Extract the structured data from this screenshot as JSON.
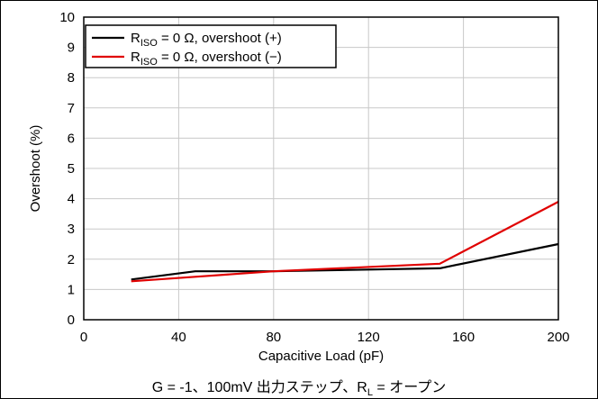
{
  "chart_data": {
    "type": "line",
    "xlabel": "Capacitive Load (pF)",
    "ylabel": "Overshoot (%)",
    "xlim": [
      0,
      200
    ],
    "ylim": [
      0,
      10
    ],
    "xticks": [
      0,
      40,
      80,
      120,
      160,
      200
    ],
    "yticks": [
      0,
      1,
      2,
      3,
      4,
      5,
      6,
      7,
      8,
      9,
      10
    ],
    "grid": true,
    "legend_position": "top-left",
    "series": [
      {
        "name": "R",
        "name_sub": "ISO",
        "name_rest": " = 0 Ω, overshoot (+)",
        "color": "#000000",
        "points": [
          [
            20,
            1.33
          ],
          [
            47,
            1.6
          ],
          [
            80,
            1.6
          ],
          [
            150,
            1.7
          ],
          [
            200,
            2.5
          ]
        ]
      },
      {
        "name": "R",
        "name_sub": "ISO",
        "name_rest": " = 0 Ω, overshoot (−)",
        "color": "#e00000",
        "points": [
          [
            20,
            1.27
          ],
          [
            47,
            1.42
          ],
          [
            80,
            1.6
          ],
          [
            150,
            1.85
          ],
          [
            200,
            3.9
          ]
        ]
      }
    ]
  },
  "caption": {
    "prefix": "G = -1、100mV 出力ステップ、R",
    "sub": "L",
    "suffix": " = オープン"
  }
}
